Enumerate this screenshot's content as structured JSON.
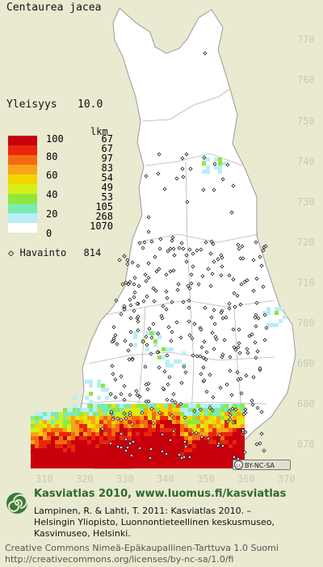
{
  "species": "Centaurea jacea",
  "frequency": {
    "label": "Yleisyys",
    "value": "10.0"
  },
  "legend": {
    "count_header": "lkm",
    "rows": [
      {
        "level": "100",
        "count": "67",
        "color": "#c8000c"
      },
      {
        "level": "80",
        "count": "67",
        "color": "#e8260c"
      },
      {
        "level": "",
        "count": "97",
        "color": "#f46a10"
      },
      {
        "level": "60",
        "count": "83",
        "color": "#f8a418"
      },
      {
        "level": "",
        "count": "54",
        "color": "#f2d600"
      },
      {
        "level": "40",
        "count": "49",
        "color": "#d8ee18"
      },
      {
        "level": "",
        "count": "53",
        "color": "#8ee83c"
      },
      {
        "level": "20",
        "count": "105",
        "color": "#7ceab0"
      },
      {
        "level": "",
        "count": "268",
        "color": "#b8eef8"
      },
      {
        "level": "0",
        "count": "1070",
        "color": "#ffffff"
      }
    ]
  },
  "observations": {
    "symbol": "◇",
    "label": "Havainto",
    "count": "814"
  },
  "y_ticks": [
    "770",
    "760",
    "750",
    "740",
    "730",
    "720",
    "710",
    "700",
    "690",
    "680",
    "670"
  ],
  "x_ticks": [
    "310",
    "320",
    "330",
    "340",
    "350",
    "360",
    "370"
  ],
  "license_badge": "BY-NC-SA",
  "footer": {
    "title": "Kasviatlas 2010, www.luomus.fi/kasviatlas",
    "credit_lines": [
      "Lampinen, R. & Lahti, T. 2011: Kasviatlas 2010. –",
      "Helsingin Yliopisto, Luonnontieteellinen keskusmuseo,",
      "Kasvimuseo, Helsinki."
    ],
    "license_lines": [
      "Creative Commons Nimeä-Epäkaupallinen-Tarttuva 1.0 Suomi",
      "http://creativecommons.org/licenses/by-nc-sa/1.0/fi"
    ]
  },
  "colors": {
    "background": "#e9ead0",
    "land": "#ffffff",
    "title_green": "#2e6a2e",
    "grid_text": "#c9cbaf"
  }
}
